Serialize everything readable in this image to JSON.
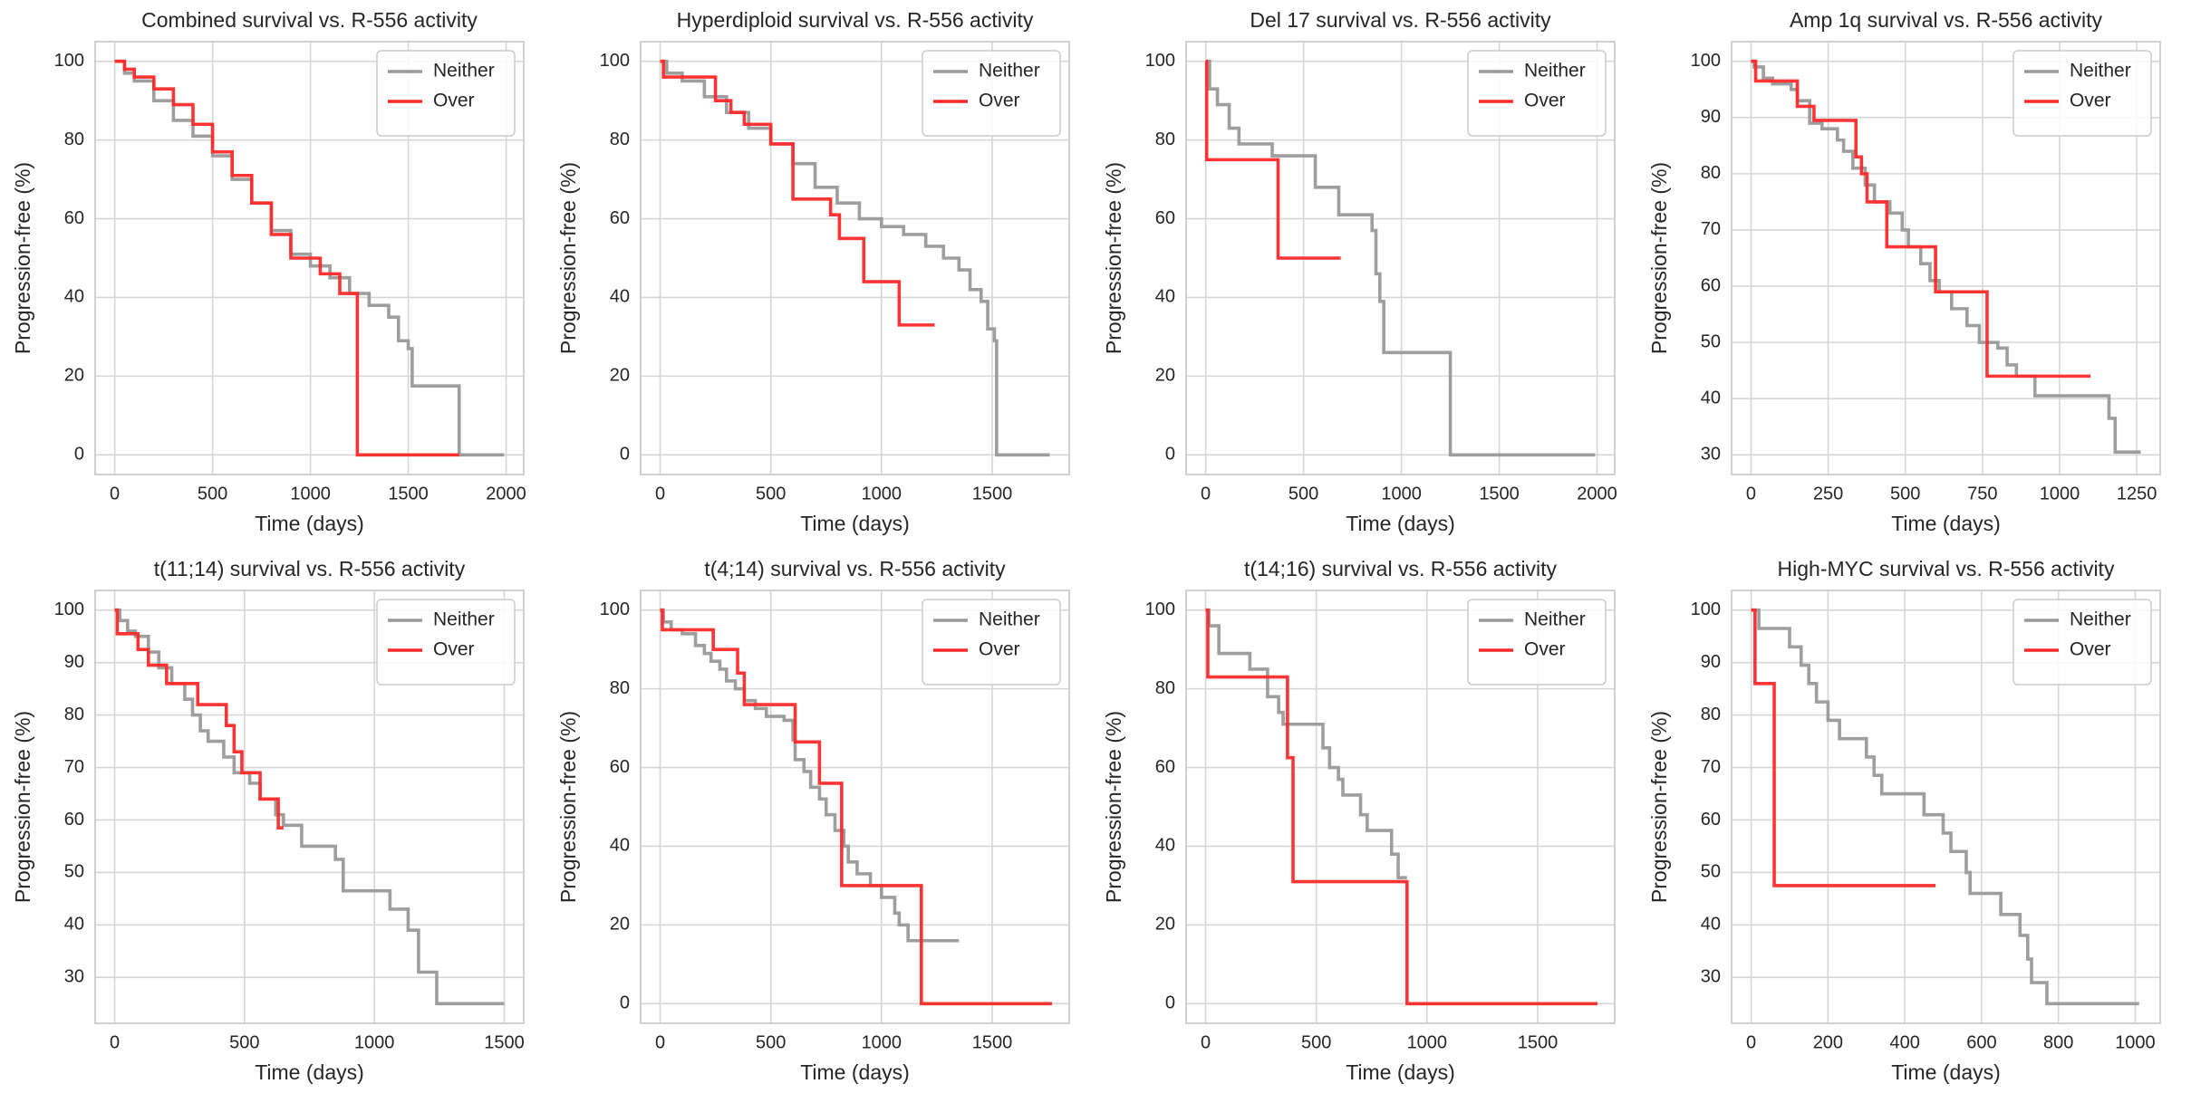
{
  "chart_data": [
    {
      "type": "line",
      "drawstyle": "steps-post",
      "title": "Combined survival vs. R-556 activity",
      "xlabel": "Time (days)",
      "ylabel": "Progression-free (%)",
      "xlim": [
        -100,
        2090
      ],
      "ylim": [
        -5,
        105
      ],
      "xticks": [
        0,
        500,
        1000,
        1500,
        2000
      ],
      "yticks": [
        0,
        20,
        40,
        60,
        80,
        100
      ],
      "grid": true,
      "legend": "upper right",
      "series": [
        {
          "name": "Neither",
          "color": "#999999",
          "x": [
            0,
            50,
            100,
            200,
            300,
            400,
            500,
            600,
            700,
            800,
            900,
            1000,
            1100,
            1200,
            1300,
            1400,
            1450,
            1500,
            1520,
            1760,
            1990
          ],
          "values": [
            100,
            97,
            95,
            90,
            85,
            81,
            76,
            70,
            64,
            57,
            51,
            48,
            45,
            41,
            38,
            35,
            29,
            27,
            17.5,
            0,
            0
          ]
        },
        {
          "name": "Over",
          "color": "#ff2a2a",
          "x": [
            0,
            50,
            100,
            200,
            300,
            400,
            500,
            600,
            700,
            800,
            900,
            1050,
            1150,
            1240,
            1760
          ],
          "values": [
            100,
            98,
            96,
            93,
            89,
            84,
            77,
            71,
            64,
            56,
            50,
            46,
            41,
            0,
            0
          ]
        }
      ]
    },
    {
      "type": "line",
      "drawstyle": "steps-post",
      "title": "Hyperdiploid survival vs. R-556 activity",
      "xlabel": "Time (days)",
      "ylabel": "Progression-free (%)",
      "xlim": [
        -88,
        1848
      ],
      "ylim": [
        -5,
        105
      ],
      "xticks": [
        0,
        500,
        1000,
        1500
      ],
      "yticks": [
        0,
        20,
        40,
        60,
        80,
        100
      ],
      "grid": true,
      "legend": "upper right",
      "series": [
        {
          "name": "Neither",
          "color": "#999999",
          "x": [
            0,
            30,
            100,
            200,
            300,
            400,
            500,
            600,
            700,
            800,
            900,
            1000,
            1100,
            1200,
            1280,
            1350,
            1400,
            1450,
            1480,
            1510,
            1520,
            1760
          ],
          "values": [
            100,
            97,
            95,
            91,
            87,
            83,
            79,
            74,
            68,
            64,
            60,
            58,
            56,
            53,
            50,
            47,
            42,
            39,
            32,
            29,
            0,
            0
          ]
        },
        {
          "name": "Over",
          "color": "#ff2a2a",
          "x": [
            0,
            15,
            250,
            320,
            380,
            500,
            600,
            770,
            810,
            920,
            1080,
            1240
          ],
          "values": [
            100,
            96,
            90,
            87,
            84,
            79,
            65,
            61,
            55,
            44,
            33,
            33
          ]
        }
      ]
    },
    {
      "type": "line",
      "drawstyle": "steps-post",
      "title": "Del 17 survival vs. R-556 activity",
      "xlabel": "Time (days)",
      "ylabel": "Progression-free (%)",
      "xlim": [
        -100,
        2090
      ],
      "ylim": [
        -5,
        105
      ],
      "xticks": [
        0,
        500,
        1000,
        1500,
        2000
      ],
      "yticks": [
        0,
        20,
        40,
        60,
        80,
        100
      ],
      "grid": true,
      "legend": "upper right",
      "series": [
        {
          "name": "Neither",
          "color": "#999999",
          "x": [
            0,
            20,
            60,
            120,
            170,
            340,
            560,
            680,
            850,
            870,
            890,
            910,
            1250,
            1990
          ],
          "values": [
            100,
            93,
            89,
            83,
            79,
            76,
            68,
            61,
            57,
            46,
            39,
            26,
            0,
            0
          ]
        },
        {
          "name": "Over",
          "color": "#ff2a2a",
          "x": [
            0,
            5,
            370,
            690
          ],
          "values": [
            100,
            75,
            50,
            50
          ]
        }
      ]
    },
    {
      "type": "line",
      "drawstyle": "steps-post",
      "title": "Amp 1q survival vs. R-556 activity",
      "xlabel": "Time (days)",
      "ylabel": "Progression-free (%)",
      "xlim": [
        -63,
        1326
      ],
      "ylim": [
        26.5,
        103.5
      ],
      "xticks": [
        0,
        250,
        500,
        750,
        1000,
        1250
      ],
      "yticks": [
        30,
        40,
        50,
        60,
        70,
        80,
        90,
        100
      ],
      "grid": true,
      "legend": "upper right",
      "series": [
        {
          "name": "Neither",
          "color": "#999999",
          "x": [
            0,
            10,
            40,
            70,
            130,
            150,
            190,
            230,
            280,
            300,
            330,
            370,
            400,
            450,
            490,
            510,
            550,
            580,
            610,
            650,
            700,
            740,
            800,
            830,
            860,
            920,
            1160,
            1180,
            1263
          ],
          "values": [
            100,
            99,
            97,
            96,
            95,
            93,
            89,
            88,
            86,
            84,
            81,
            78,
            75,
            73,
            70,
            67,
            64,
            61,
            59,
            56,
            53,
            50,
            49,
            46,
            44,
            40.5,
            36.5,
            30.5,
            30.5
          ]
        },
        {
          "name": "Over",
          "color": "#ff2a2a",
          "x": [
            0,
            15,
            150,
            204,
            340,
            358,
            376,
            440,
            598,
            765,
            1100
          ],
          "values": [
            100,
            96.5,
            92,
            89.5,
            83,
            80,
            75,
            67,
            59,
            44,
            44
          ]
        }
      ]
    },
    {
      "type": "line",
      "drawstyle": "steps-post",
      "title": "t(11;14) survival vs. R-556 activity",
      "xlabel": "Time (days)",
      "ylabel": "Progression-free (%)",
      "xlim": [
        -75,
        1575
      ],
      "ylim": [
        21.25,
        103.75
      ],
      "xticks": [
        0,
        500,
        1000,
        1500
      ],
      "yticks": [
        30,
        40,
        50,
        60,
        70,
        80,
        90,
        100
      ],
      "grid": true,
      "legend": "upper right",
      "series": [
        {
          "name": "Neither",
          "color": "#999999",
          "x": [
            0,
            20,
            50,
            80,
            130,
            170,
            220,
            270,
            300,
            330,
            360,
            420,
            460,
            520,
            560,
            620,
            650,
            720,
            850,
            880,
            1060,
            1130,
            1170,
            1240,
            1500
          ],
          "values": [
            100,
            98,
            96,
            95,
            92,
            89,
            86,
            83,
            80,
            77,
            75,
            72,
            69,
            67,
            64,
            61,
            59,
            55,
            52.5,
            46.5,
            43,
            39,
            31,
            25,
            25
          ]
        },
        {
          "name": "Over",
          "color": "#ff2a2a",
          "x": [
            0,
            10,
            90,
            130,
            200,
            320,
            430,
            460,
            490,
            560,
            630,
            650
          ],
          "values": [
            100,
            95.5,
            92.5,
            89.5,
            86,
            82,
            78,
            73,
            69,
            64,
            58.5,
            58.5
          ]
        }
      ]
    },
    {
      "type": "line",
      "drawstyle": "steps-post",
      "title": "t(4;14) survival vs. R-556 activity",
      "xlabel": "Time (days)",
      "ylabel": "Progression-free (%)",
      "xlim": [
        -88,
        1848
      ],
      "ylim": [
        -5,
        105
      ],
      "xticks": [
        0,
        500,
        1000,
        1500
      ],
      "yticks": [
        0,
        20,
        40,
        60,
        80,
        100
      ],
      "grid": true,
      "legend": "upper right",
      "series": [
        {
          "name": "Neither",
          "color": "#999999",
          "x": [
            0,
            15,
            50,
            100,
            160,
            200,
            230,
            270,
            300,
            340,
            380,
            430,
            480,
            560,
            600,
            610,
            650,
            680,
            720,
            750,
            790,
            830,
            850,
            890,
            950,
            1000,
            1060,
            1080,
            1120,
            1350
          ],
          "values": [
            100,
            97,
            95,
            94,
            91,
            89,
            87,
            85,
            82,
            80,
            77,
            75,
            73,
            72,
            67,
            62,
            59,
            55,
            52,
            48,
            44,
            40,
            36,
            33,
            30,
            27,
            23,
            20,
            16,
            16
          ]
        },
        {
          "name": "Over",
          "color": "#ff2a2a",
          "x": [
            0,
            10,
            240,
            350,
            380,
            610,
            720,
            820,
            1180,
            1770
          ],
          "values": [
            100,
            95,
            90,
            84,
            76,
            66.5,
            56,
            30,
            0,
            0
          ]
        }
      ]
    },
    {
      "type": "line",
      "drawstyle": "steps-post",
      "title": "t(14;16) survival vs. R-556 activity",
      "xlabel": "Time (days)",
      "ylabel": "Progression-free (%)",
      "xlim": [
        -88,
        1848
      ],
      "ylim": [
        -5,
        105
      ],
      "xticks": [
        0,
        500,
        1000,
        1500
      ],
      "yticks": [
        0,
        20,
        40,
        60,
        80,
        100
      ],
      "grid": true,
      "legend": "upper right",
      "series": [
        {
          "name": "Neither",
          "color": "#999999",
          "x": [
            0,
            15,
            60,
            200,
            280,
            330,
            350,
            530,
            560,
            600,
            620,
            700,
            730,
            840,
            870,
            910
          ],
          "values": [
            100,
            96,
            89,
            85,
            78,
            74,
            71,
            65,
            60,
            57,
            53,
            48,
            44,
            38,
            32,
            32
          ]
        },
        {
          "name": "Over",
          "color": "#ff2a2a",
          "x": [
            0,
            10,
            370,
            395,
            910,
            1770
          ],
          "values": [
            100,
            83,
            62.5,
            31,
            0,
            0
          ]
        }
      ]
    },
    {
      "type": "line",
      "drawstyle": "steps-post",
      "title": "High-MYC survival vs. R-556 activity",
      "xlabel": "Time (days)",
      "ylabel": "Progression-free (%)",
      "xlim": [
        -51,
        1065
      ],
      "ylim": [
        21.25,
        103.75
      ],
      "xticks": [
        0,
        200,
        400,
        600,
        800,
        1000
      ],
      "yticks": [
        30,
        40,
        50,
        60,
        70,
        80,
        90,
        100
      ],
      "grid": true,
      "legend": "upper right",
      "series": [
        {
          "name": "Neither",
          "color": "#999999",
          "x": [
            0,
            20,
            100,
            130,
            150,
            170,
            200,
            230,
            300,
            320,
            340,
            450,
            500,
            520,
            560,
            570,
            650,
            700,
            720,
            730,
            770,
            1010
          ],
          "values": [
            100,
            96.5,
            93,
            89.5,
            86,
            82.5,
            79,
            75.5,
            72,
            68.5,
            65,
            61,
            57.5,
            54,
            50,
            46,
            42,
            38,
            33.5,
            29,
            25,
            25
          ]
        },
        {
          "name": "Over",
          "color": "#ff2a2a",
          "x": [
            0,
            10,
            60,
            480
          ],
          "values": [
            100,
            86,
            47.5,
            47.5
          ]
        }
      ]
    }
  ]
}
